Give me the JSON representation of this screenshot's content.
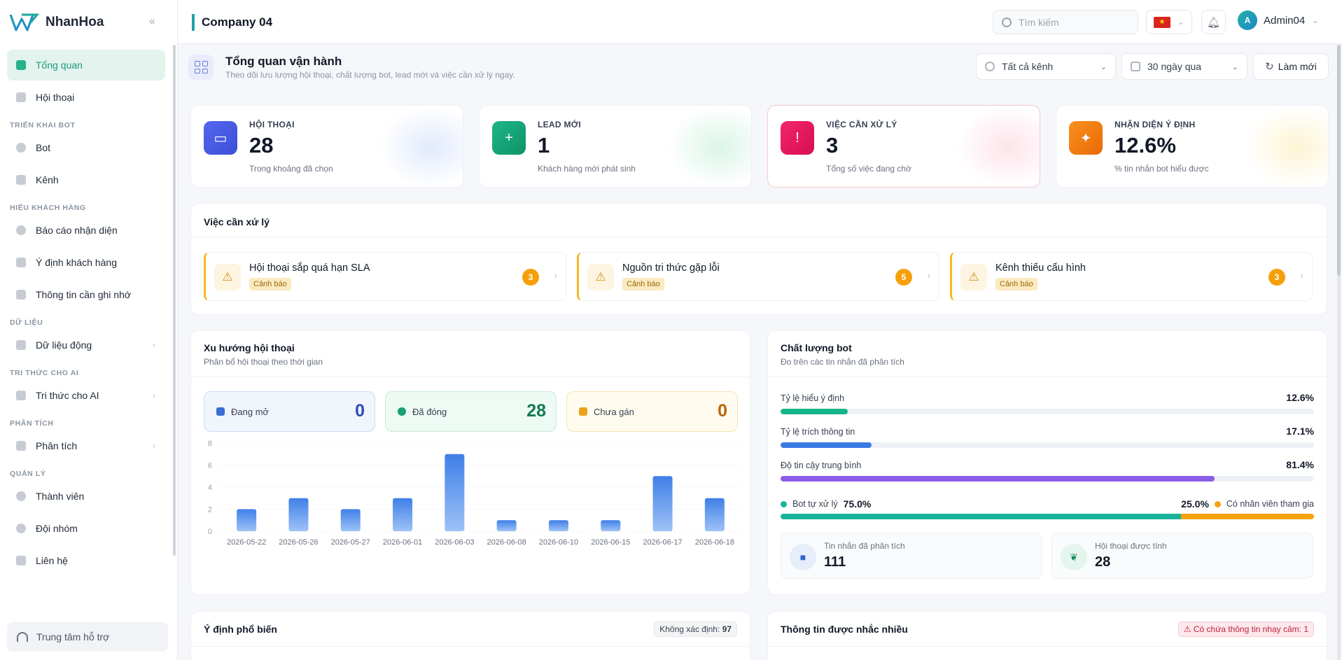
{
  "brand": {
    "name": "NhanHoa",
    "collapse_icon": "double-chevron-left-icon"
  },
  "sidebar": {
    "items": [
      {
        "label": "Tổng quan",
        "active": true
      },
      {
        "label": "Hội thoại"
      }
    ],
    "sections": [
      {
        "title": "TRIỂN KHAI BOT",
        "items": [
          {
            "label": "Bot"
          },
          {
            "label": "Kênh"
          }
        ]
      },
      {
        "title": "HIỂU KHÁCH HÀNG",
        "items": [
          {
            "label": "Báo cáo nhận diện"
          },
          {
            "label": "Ý định khách hàng"
          },
          {
            "label": "Thông tin cần ghi nhớ"
          }
        ]
      },
      {
        "title": "DỮ LIỆU",
        "items": [
          {
            "label": "Dữ liệu động",
            "has_children": true
          }
        ]
      },
      {
        "title": "TRI THỨC CHO AI",
        "items": [
          {
            "label": "Tri thức cho AI",
            "has_children": true
          }
        ]
      },
      {
        "title": "PHÂN TÍCH",
        "items": [
          {
            "label": "Phân tích",
            "has_children": true
          }
        ]
      },
      {
        "title": "QUẢN LÝ",
        "items": [
          {
            "label": "Thành viên"
          },
          {
            "label": "Đội nhóm"
          },
          {
            "label": "Liên hệ"
          }
        ]
      }
    ],
    "support_label": "Trung tâm hỗ trợ"
  },
  "topbar": {
    "company": "Company 04",
    "search_placeholder": "Tìm kiếm",
    "language_flag": "vn-flag-icon",
    "user": {
      "initial": "A",
      "name": "Admin04"
    }
  },
  "header": {
    "title": "Tổng quan vận hành",
    "subtitle": "Theo dõi lưu lượng hội thoại, chất lượng bot, lead mới và việc cần xử lý ngay.",
    "channel_filter": "Tất cả kênh",
    "date_filter": "30 ngày qua",
    "refresh_label": "Làm mới"
  },
  "kpis": [
    {
      "label": "HỘI THOẠI",
      "value": "28",
      "note": "Trong khoảng đã chọn",
      "icon": "chat-icon",
      "color": "#4f62e8"
    },
    {
      "label": "LEAD MỚI",
      "value": "1",
      "note": "Khách hàng mới phát sinh",
      "icon": "user-plus-icon",
      "color": "#16a37a"
    },
    {
      "label": "VIỆC CẦN XỬ LÝ",
      "value": "3",
      "note": "Tổng số việc đang chờ",
      "icon": "alert-circle-icon",
      "color": "#e8175d"
    },
    {
      "label": "NHẬN DIỆN Ý ĐỊNH",
      "value": "12.6%",
      "note": "% tin nhắn bot hiểu được",
      "icon": "sparkle-icon",
      "color": "#f07b0c"
    }
  ],
  "tasks": {
    "title": "Việc cần xử lý",
    "items": [
      {
        "name": "Hội thoại sắp quá hạn SLA",
        "badge": "Cảnh báo",
        "count": "3"
      },
      {
        "name": "Nguồn tri thức gặp lỗi",
        "badge": "Cảnh báo",
        "count": "5"
      },
      {
        "name": "Kênh thiếu cấu hình",
        "badge": "Cảnh báo",
        "count": "3"
      }
    ]
  },
  "trend": {
    "title": "Xu hướng hội thoại",
    "subtitle": "Phân bổ hội thoại theo thời gian",
    "stats": [
      {
        "label": "Đang mở",
        "value": "0",
        "color": "#3b6fd8"
      },
      {
        "label": "Đã đóng",
        "value": "28",
        "color": "#18a174"
      },
      {
        "label": "Chưa gán",
        "value": "0",
        "color": "#c76f0b"
      }
    ]
  },
  "chart_data": {
    "type": "bar",
    "categories": [
      "2026-05-22",
      "2026-05-26",
      "2026-05-27",
      "2026-06-01",
      "2026-06-03",
      "2026-06-08",
      "2026-06-10",
      "2026-06-15",
      "2026-06-17",
      "2026-06-18"
    ],
    "values": [
      2,
      3,
      2,
      3,
      7,
      1,
      1,
      1,
      5,
      3
    ],
    "ylim": [
      0,
      8
    ],
    "yticks": [
      0,
      2,
      4,
      6,
      8
    ],
    "grid": true,
    "bar_color": "#4a8af0"
  },
  "quality": {
    "title": "Chất lượng bot",
    "subtitle": "Đo trên các tin nhắn đã phân tích",
    "metrics": [
      {
        "label": "Tỷ lệ hiểu ý định",
        "value": "12.6%",
        "fraction": 0.126,
        "color": "#16b48a"
      },
      {
        "label": "Tỷ lệ trích thông tin",
        "value": "17.1%",
        "fraction": 0.171,
        "color": "#3a7ae3"
      },
      {
        "label": "Độ tin cậy trung bình",
        "value": "81.4%",
        "fraction": 0.814,
        "color": "#8b5ce6"
      }
    ],
    "split": {
      "bot_label": "Bot tự xử lý",
      "bot_value": "75.0%",
      "bot_fraction": 0.75,
      "human_label": "Có nhân viên tham gia",
      "human_value": "25.0%",
      "human_fraction": 0.25,
      "bot_color": "#17b39a",
      "human_color": "#f5a30f"
    },
    "mini": [
      {
        "label": "Tin nhắn đã phân tích",
        "value": "111",
        "icon": "message-square-icon"
      },
      {
        "label": "Hội thoại được tính",
        "value": "28",
        "icon": "leaf-icon"
      }
    ]
  },
  "bottom": {
    "intents_title": "Ý định phổ biến",
    "intents_chip_label": "Không xác định:",
    "intents_chip_value": "97",
    "info_title": "Thông tin được nhắc nhiều",
    "info_chip": "Có chứa thông tin nhạy cảm: 1"
  }
}
